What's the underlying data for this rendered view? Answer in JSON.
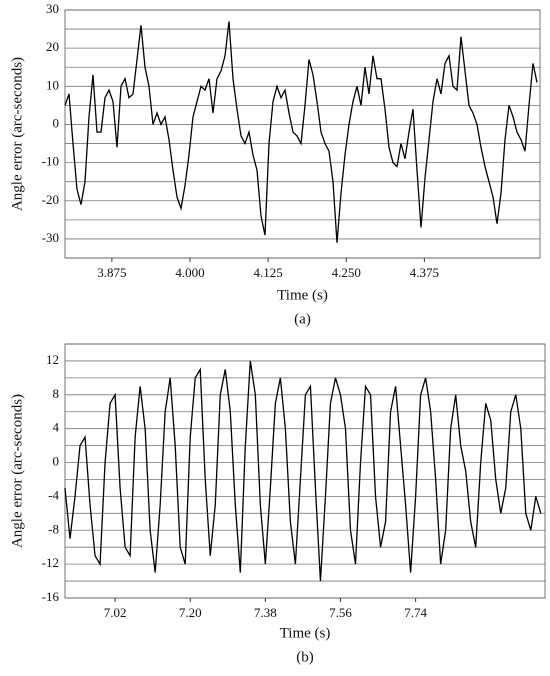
{
  "chart_data": [
    {
      "type": "line",
      "xlabel": "Time (s)",
      "ylabel": "Angle error (arc-seconds)",
      "caption": "(a)",
      "xlim": [
        3.8,
        4.56
      ],
      "ylim": [
        -35,
        30
      ],
      "xticks": [
        3.875,
        {
          "value": 4,
          "label": "4.000"
        },
        4.125,
        {
          "value": 4.25,
          "label": "4.250"
        },
        4.375
      ],
      "yticks": [
        -30,
        -20,
        -10,
        0,
        10,
        20,
        30
      ],
      "minor_yticks": [
        -35,
        -25,
        -15,
        -5,
        5,
        15,
        25
      ],
      "grid": true,
      "series": [
        {
          "color": "#000000",
          "x": [
            3.8,
            3.8064,
            3.8128,
            3.8192,
            3.8256,
            3.832,
            3.8384,
            3.8448,
            3.8512,
            3.8576,
            3.864,
            3.8704,
            3.8768,
            3.8832,
            3.8896,
            3.896,
            3.9024,
            3.9088,
            3.9152,
            3.9216,
            3.928,
            3.9344,
            3.9408,
            3.9472,
            3.9536,
            3.96,
            3.9664,
            3.9728,
            3.9792,
            3.9856,
            3.992,
            3.9984,
            4.0048,
            4.0112,
            4.0176,
            4.024,
            4.0304,
            4.0368,
            4.0432,
            4.0496,
            4.056,
            4.0624,
            4.0688,
            4.0752,
            4.0816,
            4.088,
            4.0944,
            4.1008,
            4.1072,
            4.1136,
            4.12,
            4.1264,
            4.1328,
            4.1392,
            4.1456,
            4.152,
            4.1584,
            4.1648,
            4.1712,
            4.1776,
            4.184,
            4.1904,
            4.1968,
            4.2032,
            4.2096,
            4.216,
            4.2224,
            4.2288,
            4.2352,
            4.2416,
            4.248,
            4.2544,
            4.2608,
            4.2672,
            4.2736,
            4.28,
            4.2864,
            4.2928,
            4.2992,
            4.3056,
            4.312,
            4.3184,
            4.3248,
            4.3312,
            4.3376,
            4.344,
            4.3504,
            4.3568,
            4.3632,
            4.3696,
            4.376,
            4.3824,
            4.3888,
            4.3952,
            4.4016,
            4.408,
            4.4144,
            4.4208,
            4.4272,
            4.4336,
            4.44,
            4.4464,
            4.4528,
            4.4592,
            4.4656,
            4.472,
            4.4784,
            4.4848,
            4.4912,
            4.4976,
            4.504,
            4.5104,
            4.5168,
            4.5232,
            4.5296,
            4.536,
            4.5424,
            4.5488,
            4.5552
          ],
          "values": [
            5,
            8,
            -5,
            -17,
            -21,
            -15,
            2,
            13,
            -2,
            -2,
            7,
            9,
            6,
            -6,
            10,
            12,
            7,
            8,
            17,
            26,
            15,
            10,
            0,
            3,
            0,
            2,
            -4,
            -12,
            -19,
            -22,
            -16,
            -8,
            2,
            6,
            10,
            9,
            12,
            3,
            12,
            14,
            18,
            27,
            12,
            4,
            -3,
            -5,
            -2,
            -8,
            -12,
            -24,
            -29,
            -5,
            6,
            10,
            7,
            9,
            3,
            -2,
            -3,
            -5,
            5,
            17,
            13,
            6,
            -2,
            -5,
            -7,
            -15,
            -31,
            -18,
            -8,
            0,
            6,
            10,
            5,
            15,
            8,
            18,
            12,
            12,
            4,
            -6,
            -10,
            -11,
            -5,
            -9,
            -2,
            4,
            -12,
            -27,
            -14,
            -4,
            6,
            12,
            8,
            16,
            18,
            10,
            9,
            23,
            14,
            5,
            3,
            0,
            -6,
            -11,
            -15,
            -19,
            -26,
            -18,
            -4,
            5,
            2,
            -2,
            -4,
            -7,
            5,
            16,
            11
          ]
        }
      ]
    },
    {
      "type": "line",
      "xlabel": "Time (s)",
      "ylabel": "Angle error (arc-seconds)",
      "caption": "(b)",
      "xlim": [
        6.9,
        8.05
      ],
      "ylim": [
        -16,
        14
      ],
      "xticks": [
        7.02,
        {
          "value": 7.2,
          "label": "7.20"
        },
        7.38,
        7.56,
        7.74
      ],
      "yticks": [
        -16,
        -12,
        -8,
        -4,
        0,
        4,
        8,
        12
      ],
      "minor_yticks": [
        -14,
        -10,
        -6,
        -2,
        2,
        6,
        10,
        14
      ],
      "grid": true,
      "series": [
        {
          "color": "#000000",
          "x": [
            6.9,
            6.912,
            6.924,
            6.936,
            6.948,
            6.96,
            6.972,
            6.984,
            6.996,
            7.008,
            7.02,
            7.032,
            7.044,
            7.056,
            7.068,
            7.08,
            7.092,
            7.104,
            7.116,
            7.128,
            7.14,
            7.152,
            7.164,
            7.176,
            7.188,
            7.2,
            7.212,
            7.224,
            7.236,
            7.248,
            7.26,
            7.272,
            7.284,
            7.296,
            7.308,
            7.32,
            7.332,
            7.344,
            7.356,
            7.368,
            7.38,
            7.392,
            7.404,
            7.416,
            7.428,
            7.44,
            7.452,
            7.464,
            7.476,
            7.488,
            7.5,
            7.512,
            7.524,
            7.536,
            7.548,
            7.56,
            7.572,
            7.584,
            7.596,
            7.608,
            7.62,
            7.632,
            7.644,
            7.656,
            7.668,
            7.68,
            7.692,
            7.704,
            7.716,
            7.728,
            7.74,
            7.752,
            7.764,
            7.776,
            7.788,
            7.8,
            7.812,
            7.824,
            7.836,
            7.848,
            7.86,
            7.872,
            7.884,
            7.896,
            7.908,
            7.92,
            7.932,
            7.944,
            7.956,
            7.968,
            7.98,
            7.992,
            8.004,
            8.016,
            8.028,
            8.04
          ],
          "values": [
            -3,
            -9,
            -4,
            2,
            3,
            -5,
            -11,
            -12,
            0,
            7,
            8,
            -3,
            -10,
            -11,
            3,
            9,
            4,
            -8,
            -13,
            -5,
            6,
            10,
            2,
            -10,
            -12,
            3,
            10,
            11,
            -2,
            -11,
            -5,
            8,
            11,
            6,
            -5,
            -13,
            2,
            12,
            8,
            -5,
            -12,
            -3,
            7,
            10,
            4,
            -7,
            -12,
            -2,
            8,
            9,
            -3,
            -14,
            -4,
            7,
            10,
            8,
            4,
            -8,
            -12,
            0,
            9,
            8,
            -4,
            -10,
            -7,
            6,
            9,
            2,
            -5,
            -13,
            -4,
            8,
            10,
            6,
            -2,
            -12,
            -8,
            4,
            8,
            2,
            -1,
            -7,
            -10,
            0,
            7,
            5,
            -2,
            -6,
            -3,
            6,
            8,
            4,
            -6,
            -8,
            -4,
            -6
          ]
        }
      ]
    }
  ]
}
